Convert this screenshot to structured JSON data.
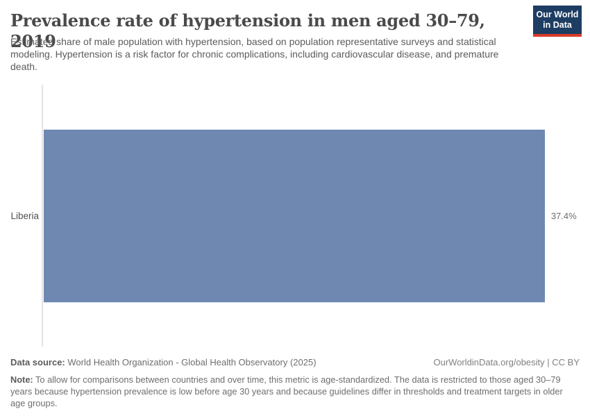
{
  "header": {
    "title": "Prevalence rate of hypertension in men aged 30–79, 2019",
    "subtitle": "Estimated share of male population with hypertension, based on population representative surveys and statistical modeling. Hypertension is a risk factor for chronic complications, including cardiovascular disease, and premature death.",
    "logo": {
      "line1": "Our World",
      "line2": "in Data"
    }
  },
  "chart_data": {
    "type": "bar",
    "orientation": "horizontal",
    "title": "Prevalence rate of hypertension in men aged 30–79, 2019",
    "categories": [
      "Liberia"
    ],
    "values": [
      37.4
    ],
    "value_labels": [
      "37.4%"
    ],
    "xlabel": "",
    "ylabel": "",
    "xlim": [
      0,
      40
    ],
    "grid": false,
    "legend": false
  },
  "footer": {
    "data_source_label": "Data source:",
    "data_source_text": "World Health Organization - Global Health Observatory (2025)",
    "license_text": "OurWorldinData.org/obesity | CC BY",
    "note_label": "Note:",
    "note_text": "To allow for comparisons between countries and over time, this metric is age-standardized. The data is restricted to those aged 30–79 years because hypertension prevalence is low before age 30 years and because guidelines differ in thresholds and treatment targets in older age groups."
  },
  "colors": {
    "bar": "#6e88b2",
    "logo_bg": "#1d3d63",
    "logo_stripe": "#d73c27",
    "axis": "#e2e2e2"
  }
}
